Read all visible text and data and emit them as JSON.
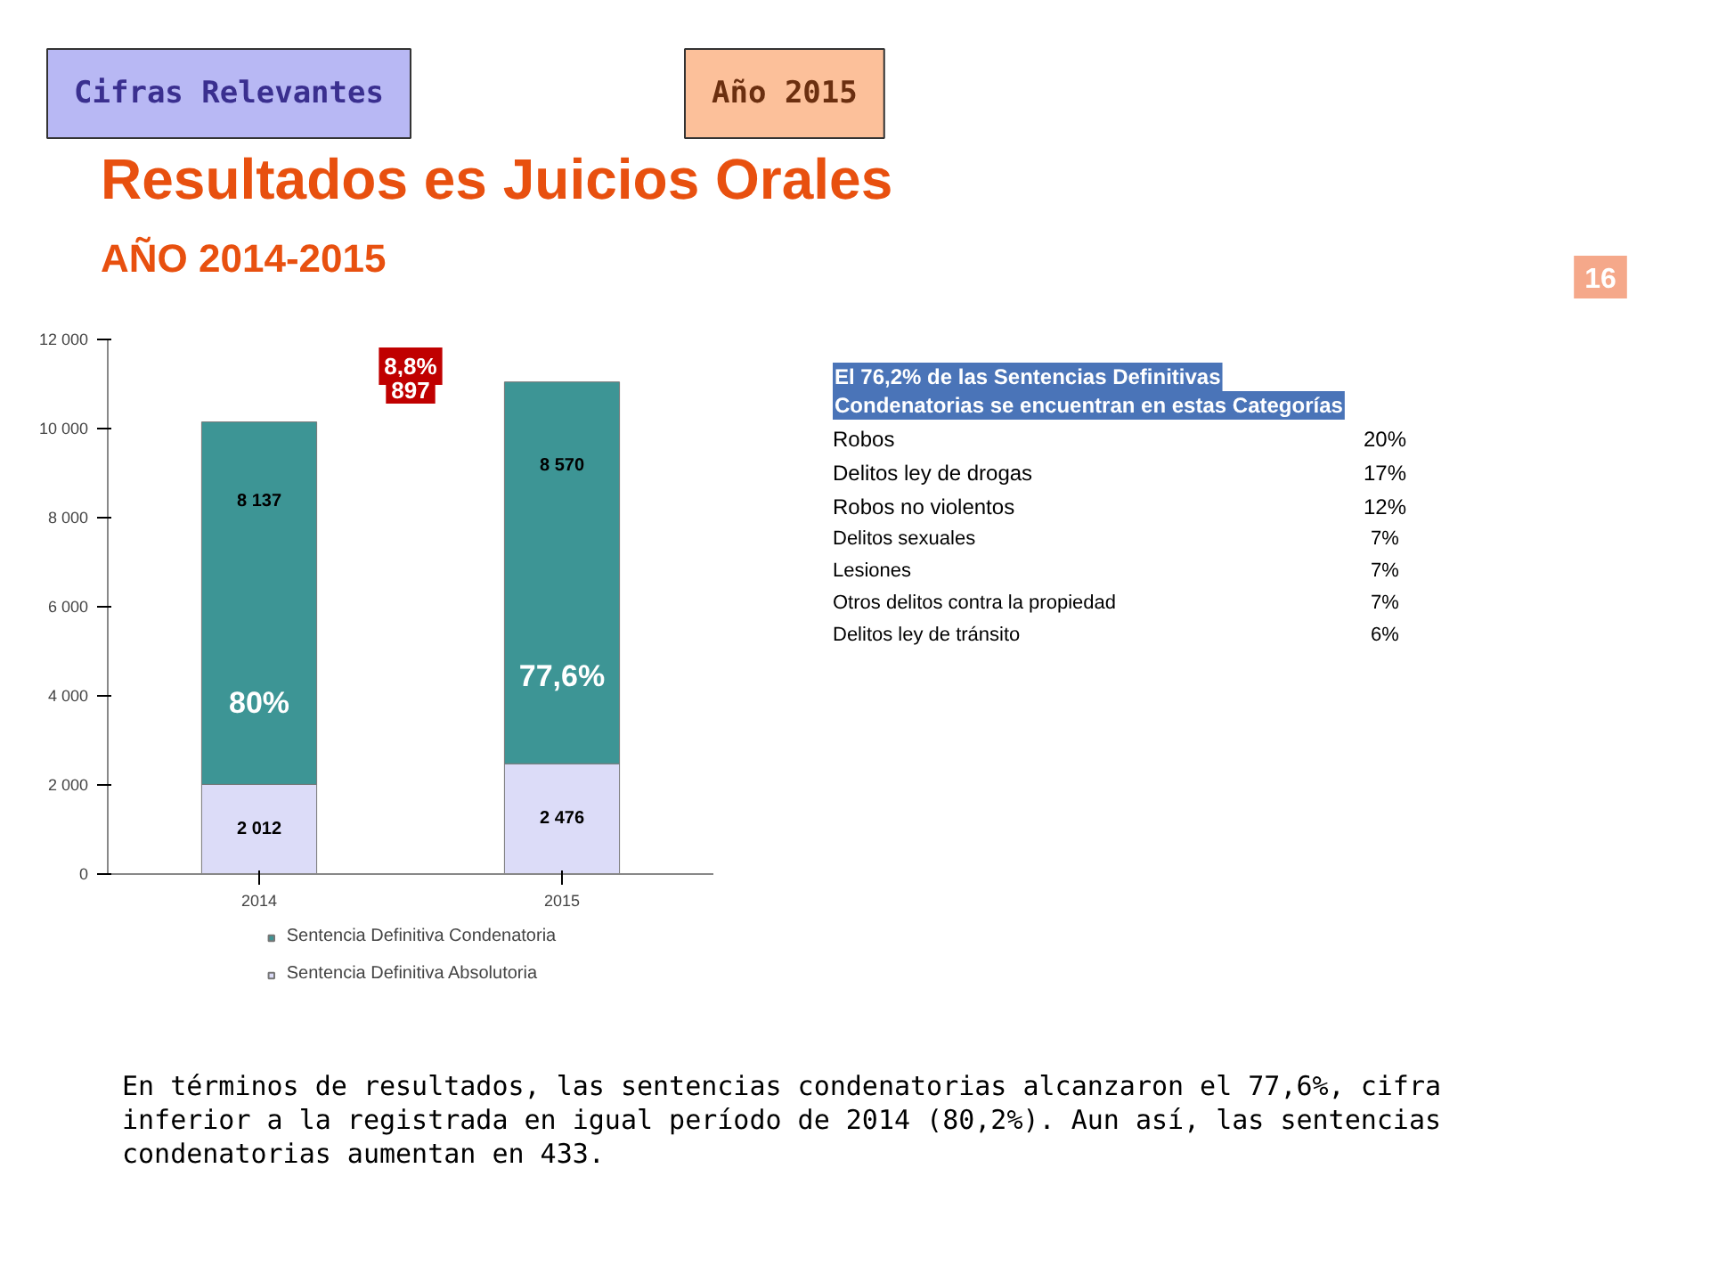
{
  "chart_data": {
    "type": "bar",
    "title": "Resultados es Juicios Orales",
    "subtitle": "AÑO 2014-2015",
    "categories": [
      "2014",
      "2015"
    ],
    "stacked": true,
    "series": [
      {
        "name": "Sentencia Definitiva Absolutoria",
        "color": "#dcdcf8",
        "values": [
          2012,
          2476
        ],
        "value_labels": [
          "2 012",
          "2 476"
        ]
      },
      {
        "name": "Sentencia Definitiva Condenatoria",
        "color": "#3d9595",
        "values": [
          8137,
          8570
        ],
        "value_labels": [
          "8 137",
          "8 570"
        ]
      }
    ],
    "ylim": [
      0,
      12000
    ],
    "yticks": [
      0,
      {
        "value": 2000,
        "label": "2 000"
      },
      {
        "value": 4000,
        "label": "4 000"
      },
      {
        "value": 6000,
        "label": "6 000"
      },
      {
        "value": 8000,
        "label": "8 000"
      },
      {
        "value": 10000,
        "label": "10 000"
      },
      {
        "value": 12000,
        "label": "12 000"
      }
    ],
    "legend": "bottom",
    "annotations": [
      "Cifras Relevantes",
      "Año 2015",
      "16",
      "8,8%",
      "897",
      "El 76,2% de las Sentencias Definitivas Condenatorias se encuentran en estas Categorías",
      "Robos",
      "20%",
      "Delitos ley de drogas",
      "17%",
      "Robos no violentos",
      "12%",
      "Delitos sexuales",
      "7%",
      "Lesiones",
      "7%",
      "Otros delitos contra la propiedad",
      "7%",
      "Delitos ley de tránsito",
      "6%",
      "En términos de resultados, las sentencias condenatorias alcanzaron el 77,6%, cifra inferior a la registrada en igual período de 2014 (80,2%). Aun así, las sentencias condenatorias aumentan en 433.",
      "80%",
      "77,6%"
    ]
  }
}
